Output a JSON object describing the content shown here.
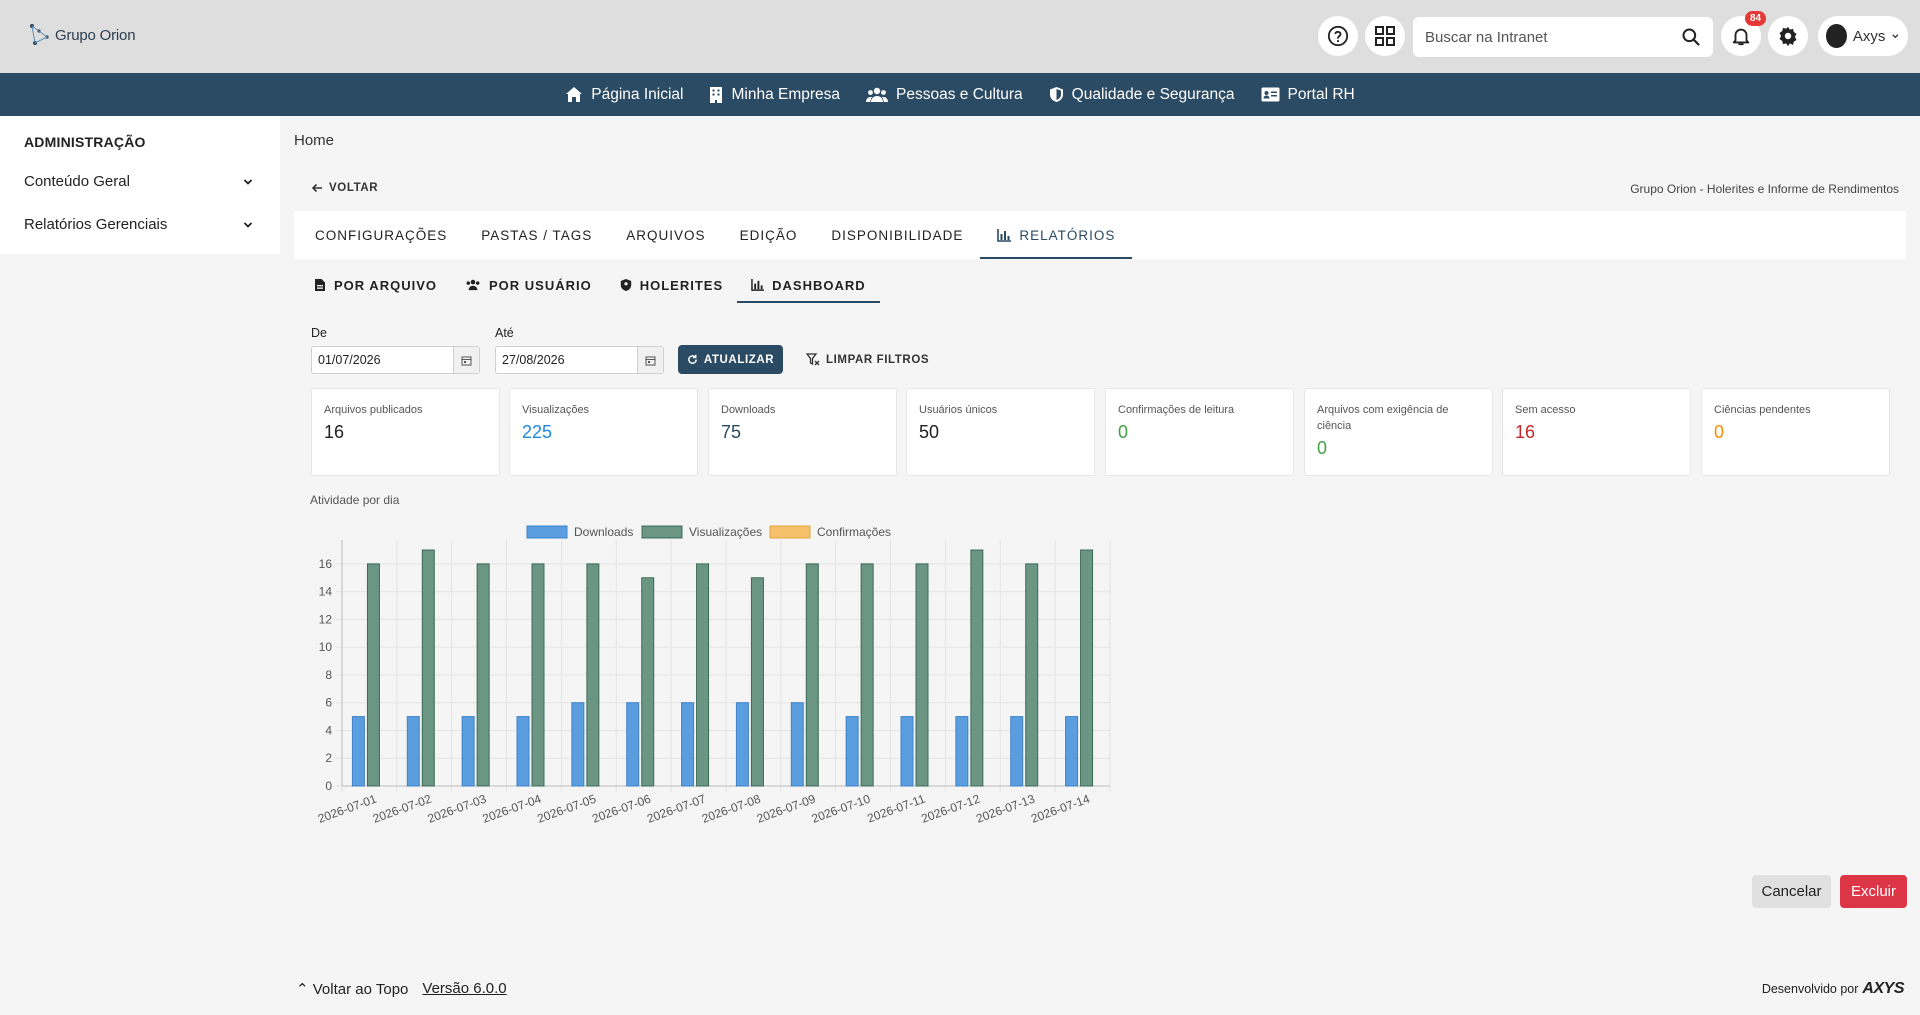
{
  "header": {
    "logo_text": "Grupo Orion",
    "search_placeholder": "Buscar na Intranet",
    "notification_count": "84",
    "user_name": "Axys"
  },
  "nav": [
    {
      "label": "Página Inicial",
      "icon": "home-icon"
    },
    {
      "label": "Minha Empresa",
      "icon": "building-icon"
    },
    {
      "label": "Pessoas e Cultura",
      "icon": "people-icon"
    },
    {
      "label": "Qualidade e Segurança",
      "icon": "shield-icon"
    },
    {
      "label": "Portal RH",
      "icon": "id-card-icon"
    }
  ],
  "sidebar": {
    "title": "ADMINISTRAÇÃO",
    "items": [
      {
        "label": "Conteúdo Geral"
      },
      {
        "label": "Relatórios Gerenciais"
      }
    ]
  },
  "main": {
    "breadcrumb": "Home",
    "back_label": "VOLTAR",
    "subtitle": "Grupo Orion - Holerites e Informe de Rendimentos",
    "tabs": [
      {
        "label": "CONFIGURAÇÕES"
      },
      {
        "label": "PASTAS / TAGS"
      },
      {
        "label": "ARQUIVOS"
      },
      {
        "label": "EDIÇÃO"
      },
      {
        "label": "DISPONIBILIDADE"
      },
      {
        "label": "RELATÓRIOS"
      }
    ],
    "subtabs": [
      {
        "label": "POR ARQUIVO"
      },
      {
        "label": "POR USUÁRIO"
      },
      {
        "label": "HOLERITES"
      },
      {
        "label": "DASHBOARD"
      }
    ],
    "filters": {
      "from_label": "De",
      "from_value": "01/07/2026",
      "to_label": "Até",
      "to_value": "27/08/2026",
      "refresh_label": "ATUALIZAR",
      "clear_label": "LIMPAR FILTROS"
    },
    "stats": [
      {
        "label": "Arquivos publicados",
        "value": "16",
        "color": "#212121"
      },
      {
        "label": "Visualizações",
        "value": "225",
        "color": "#1e88e5"
      },
      {
        "label": "Downloads",
        "value": "75",
        "color": "#2b4a63"
      },
      {
        "label": "Usuários únicos",
        "value": "50",
        "color": "#212121"
      },
      {
        "label": "Confirmações de leitura",
        "value": "0",
        "color": "#43a047"
      },
      {
        "label": "Arquivos com exigência de ciência",
        "value": "0",
        "color": "#43a047"
      },
      {
        "label": "Sem acesso",
        "value": "16",
        "color": "#c62828"
      },
      {
        "label": "Ciências pendentes",
        "value": "0",
        "color": "#fb8c00"
      }
    ],
    "chart_title": "Atividade por dia",
    "cancel_label": "Cancelar",
    "delete_label": "Excluir"
  },
  "footer": {
    "back_to_top": "Voltar ao Topo",
    "version": "Versão 6.0.0",
    "developed_by": "Desenvolvido por",
    "brand": "AXYS"
  },
  "chart_data": {
    "type": "bar",
    "title": "",
    "xlabel": "",
    "ylabel": "",
    "ylim": [
      0,
      17
    ],
    "yticks": [
      0,
      2,
      4,
      6,
      8,
      10,
      12,
      14,
      16
    ],
    "legend_position": "top",
    "grid": true,
    "categories": [
      "2026-07-01",
      "2026-07-02",
      "2026-07-03",
      "2026-07-04",
      "2026-07-05",
      "2026-07-06",
      "2026-07-07",
      "2026-07-08",
      "2026-07-09",
      "2026-07-10",
      "2026-07-11",
      "2026-07-12",
      "2026-07-13",
      "2026-07-14"
    ],
    "series": [
      {
        "name": "Downloads",
        "color": "#5a9ee0",
        "border": "#3f82c8",
        "values": [
          5,
          5,
          5,
          5,
          6,
          6,
          6,
          6,
          6,
          5,
          5,
          5,
          5,
          5
        ]
      },
      {
        "name": "Visualizações",
        "color": "#6b9683",
        "border": "#3c6b57",
        "values": [
          16,
          17,
          16,
          16,
          16,
          15,
          16,
          15,
          16,
          16,
          16,
          17,
          16,
          17
        ]
      },
      {
        "name": "Confirmações",
        "color": "#f5c26b",
        "border": "#e0a640",
        "values": [
          0,
          0,
          0,
          0,
          0,
          0,
          0,
          0,
          0,
          0,
          0,
          0,
          0,
          0
        ]
      }
    ]
  }
}
